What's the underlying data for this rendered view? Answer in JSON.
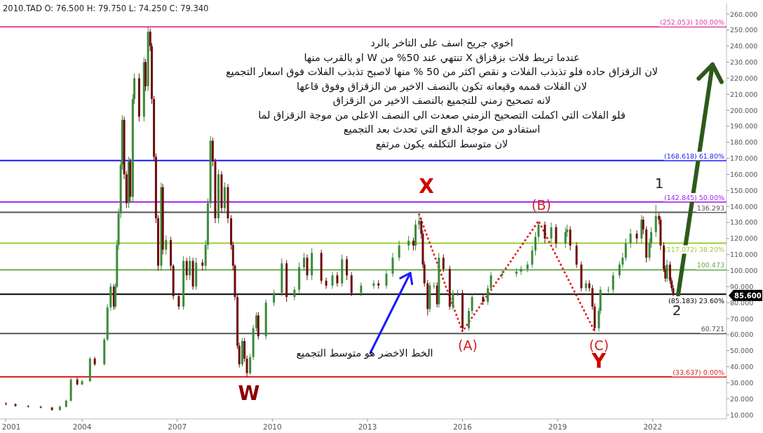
{
  "chart_data": {
    "type": "candlestick",
    "title": "2010.TAD  O: 76.500 H: 79.750 L: 74.250 C: 79.340",
    "colors": [
      "#6e0b0b",
      "#6e0b0b",
      "#6e0b0b",
      "#6e0b0b",
      "#6e0b0b",
      "#3b8a3b",
      "#3b8a3b",
      "#3b8a3b",
      "#6e0b0b",
      "#3b8a3b",
      "#3b8a3b",
      "#6e0b0b",
      "#3b8a3b",
      "#3b8a3b",
      "#3b8a3b",
      "#6e0b0b",
      "#3b8a3b",
      "#3b8a3b",
      "#3b8a3b",
      "#3b8a3b",
      "#3b8a3b",
      "#6e0b0b",
      "#6e0b0b",
      "#3b8a3b",
      "#6e0b0b",
      "#3b8a3b",
      "#3b8a3b",
      "#6e0b0b",
      "#3b8a3b",
      "#6e0b0b",
      "#3b8a3b",
      "#6e0b0b",
      "#6e0b0b",
      "#6e0b0b",
      "#6e0b0b",
      "#6e0b0b",
      "#3b8a3b",
      "#6e0b0b",
      "#3b8a3b",
      "#6e0b0b",
      "#6e0b0b",
      "#6e0b0b",
      "#3b8a3b",
      "#6e0b0b",
      "#3b8a3b",
      "#6e0b0b",
      "#3b8a3b",
      "#6e0b0b",
      "#3b8a3b",
      "#3b8a3b",
      "#3b8a3b",
      "#6e0b0b",
      "#6e0b0b",
      "#3b8a3b",
      "#6e0b0b",
      "#3b8a3b",
      "#6e0b0b",
      "#6e0b0b",
      "#6e0b0b",
      "#6e0b0b",
      "#6e0b0b",
      "#6e0b0b",
      "#3b8a3b",
      "#6e0b0b",
      "#6e0b0b",
      "#3b8a3b",
      "#3b8a3b",
      "#3b8a3b",
      "#6e0b0b",
      "#3b8a3b",
      "#3b8a3b",
      "#3b8a3b",
      "#6e0b0b",
      "#3b8a3b",
      "#3b8a3b",
      "#3b8a3b",
      "#6e0b0b",
      "#3b8a3b",
      "#6e0b0b",
      "#6e0b0b",
      "#3b8a3b",
      "#6e0b0b",
      "#3b8a3b",
      "#6e0b0b",
      "#6e0b0b",
      "#3b8a3b",
      "#3b8a3b",
      "#6e0b0b",
      "#3b8a3b",
      "#3b8a3b",
      "#3b8a3b",
      "#3b8a3b",
      "#6e0b0b",
      "#3b8a3b",
      "#3b8a3b",
      "#6e0b0b",
      "#6e0b0b",
      "#6e0b0b",
      "#6e0b0b",
      "#3b8a3b",
      "#3b8a3b",
      "#6e0b0b",
      "#3b8a3b",
      "#6e0b0b",
      "#6e0b0b",
      "#3b8a3b",
      "#3b8a3b",
      "#6e0b0b",
      "#3b8a3b",
      "#3b8a3b",
      "#6e0b0b",
      "#3b8a3b",
      "#3b8a3b",
      "#3b8a3b",
      "#3b8a3b",
      "#3b8a3b",
      "#3b8a3b",
      "#3b8a3b",
      "#3b8a3b",
      "#3b8a3b",
      "#6e0b0b",
      "#3b8a3b",
      "#6e0b0b",
      "#3b8a3b",
      "#3b8a3b",
      "#6e0b0b",
      "#6e0b0b",
      "#6e0b0b",
      "#3b8a3b",
      "#6e0b0b",
      "#6e0b0b",
      "#6e0b0b",
      "#3b8a3b",
      "#3b8a3b",
      "#3b8a3b",
      "#3b8a3b",
      "#3b8a3b",
      "#3b8a3b",
      "#3b8a3b",
      "#3b8a3b",
      "#6e0b0b",
      "#3b8a3b",
      "#6e0b0b",
      "#6e0b0b",
      "#3b8a3b",
      "#3b8a3b",
      "#3b8a3b",
      "#6e0b0b",
      "#6e0b0b",
      "#6e0b0b",
      "#6e0b0b",
      "#3b8a3b",
      "#6e0b0b",
      "#6e0b0b",
      "#6e0b0b"
    ],
    "x": [
      "2001-08-07",
      "2001-11-24",
      "2002-04-20",
      "2002-09-12",
      "2003-01-19",
      "2003-04-20",
      "2003-07-01",
      "2003-08-25",
      "2003-11-06",
      "2004-01-01",
      "2004-04-01",
      "2004-05-26",
      "2004-09-13",
      "2004-10-19",
      "2004-11-25",
      "2005-01-01",
      "2005-01-19",
      "2005-02-06",
      "2005-02-24",
      "2005-03-21",
      "2005-04-08",
      "2005-04-30",
      "2005-05-26",
      "2005-06-21",
      "2005-07-09",
      "2005-08-07",
      "2005-08-25",
      "2005-10-19",
      "2005-12-14",
      "2006-01-01",
      "2006-01-30",
      "2006-02-24",
      "2006-03-14",
      "2006-04-08",
      "2006-05-01",
      "2006-05-26",
      "2006-07-01",
      "2006-07-19",
      "2006-08-25",
      "2006-10-19",
      "2006-11-17",
      "2007-01-19",
      "2007-03-14",
      "2007-04-20",
      "2007-05-26",
      "2007-07-01",
      "2007-08-07",
      "2007-10-19",
      "2007-11-24",
      "2007-12-20",
      "2008-01-19",
      "2008-02-14",
      "2008-03-14",
      "2008-04-20",
      "2008-05-26",
      "2008-07-01",
      "2008-08-07",
      "2008-09-13",
      "2008-10-05",
      "2008-10-27",
      "2008-11-25",
      "2008-12-16",
      "2009-01-19",
      "2009-02-14",
      "2009-03-14",
      "2009-04-20",
      "2009-05-26",
      "2009-07-01",
      "2009-07-23",
      "2009-10-19",
      "2010-01-19",
      "2010-04-20",
      "2010-06-14",
      "2010-09-13",
      "2010-11-06",
      "2011-01-01",
      "2011-02-06",
      "2011-04-01",
      "2011-07-19",
      "2011-09-13",
      "2011-11-24",
      "2012-01-19",
      "2012-03-14",
      "2012-05-08",
      "2012-07-01",
      "2012-10-19",
      "2013-03-14",
      "2013-05-08",
      "2013-08-07",
      "2013-10-19",
      "2014-01-01",
      "2014-04-20",
      "2014-06-14",
      "2014-07-09",
      "2014-08-19",
      "2014-09-13",
      "2014-10-01",
      "2014-10-19",
      "2014-11-25",
      "2014-12-20",
      "2015-02-06",
      "2015-03-14",
      "2015-04-04",
      "2015-05-26",
      "2015-08-07",
      "2015-09-13",
      "2015-11-06",
      "2016-01-01",
      "2016-03-14",
      "2016-04-20",
      "2016-08-25",
      "2016-10-19",
      "2016-11-24",
      "2017-04-01",
      "2017-09-13",
      "2017-11-06",
      "2018-01-19",
      "2018-03-14",
      "2018-04-20",
      "2018-05-26",
      "2018-08-07",
      "2018-10-19",
      "2018-12-14",
      "2019-04-01",
      "2019-04-20",
      "2019-05-26",
      "2019-08-07",
      "2019-10-01",
      "2019-11-24",
      "2020-01-01",
      "2020-02-06",
      "2020-03-03",
      "2020-04-20",
      "2020-05-08",
      "2020-08-07",
      "2020-10-01",
      "2020-12-14",
      "2021-01-19",
      "2021-02-24",
      "2021-04-20",
      "2021-07-01",
      "2021-08-25",
      "2021-09-13",
      "2021-10-19",
      "2021-11-24",
      "2021-12-14",
      "2022-02-06",
      "2022-03-14",
      "2022-04-01",
      "2022-05-08",
      "2022-05-26",
      "2022-06-14",
      "2022-07-19",
      "2022-08-07",
      "2022-08-25"
    ],
    "ohlc": [
      [
        17,
        17.8,
        16,
        16.6
      ],
      [
        16.6,
        17.2,
        15,
        15.5
      ],
      [
        15.5,
        16,
        14.5,
        15
      ],
      [
        15,
        15.6,
        14,
        14.5
      ],
      [
        14.5,
        15,
        12.5,
        13
      ],
      [
        13,
        15.8,
        12.6,
        15
      ],
      [
        15,
        19.5,
        14.6,
        18.8
      ],
      [
        18.8,
        33,
        18.2,
        32
      ],
      [
        32,
        33.5,
        28.2,
        29
      ],
      [
        29,
        31.8,
        28.5,
        31
      ],
      [
        31,
        46,
        30.5,
        45
      ],
      [
        45,
        46.2,
        40.5,
        41.5
      ],
      [
        41.5,
        58,
        40.8,
        57
      ],
      [
        57,
        79,
        56,
        77
      ],
      [
        77,
        92,
        75,
        90
      ],
      [
        90,
        91.5,
        75.5,
        77.5
      ],
      [
        77.5,
        92,
        76,
        90
      ],
      [
        90,
        119,
        89,
        116
      ],
      [
        116,
        138.6,
        113,
        135.6
      ],
      [
        135.6,
        169,
        132.6,
        166
      ],
      [
        166,
        197,
        163,
        194
      ],
      [
        194,
        196,
        157,
        160
      ],
      [
        160,
        162,
        139,
        142
      ],
      [
        142,
        171,
        139,
        168
      ],
      [
        168,
        170,
        143,
        146
      ],
      [
        146,
        210,
        143,
        207
      ],
      [
        207,
        223,
        204,
        220
      ],
      [
        220,
        223,
        193,
        196
      ],
      [
        196,
        233,
        193,
        230
      ],
      [
        230,
        232,
        212,
        215
      ],
      [
        215,
        252.053,
        212,
        249
      ],
      [
        249,
        251,
        237,
        240
      ],
      [
        240,
        242,
        204,
        207
      ],
      [
        207,
        209,
        168,
        171
      ],
      [
        171,
        173,
        129.6,
        132.6
      ],
      [
        132.6,
        134.6,
        100,
        103
      ],
      [
        103,
        155,
        100,
        152
      ],
      [
        152,
        154,
        110,
        113
      ],
      [
        113,
        122,
        110,
        119
      ],
      [
        119,
        121,
        100,
        103
      ],
      [
        103,
        104,
        82,
        84
      ],
      [
        84,
        86,
        75.5,
        77.5
      ],
      [
        77.5,
        109,
        75.5,
        106
      ],
      [
        106,
        108,
        94,
        97
      ],
      [
        97,
        109,
        94,
        106
      ],
      [
        106,
        108,
        88,
        90
      ],
      [
        90,
        108,
        88,
        105
      ],
      [
        105,
        107,
        100,
        103
      ],
      [
        103,
        119,
        100,
        116
      ],
      [
        116,
        145,
        113,
        142
      ],
      [
        142,
        184,
        139,
        181
      ],
      [
        181,
        183,
        165,
        168
      ],
      [
        168,
        170,
        129.6,
        132.6
      ],
      [
        132.6,
        163,
        129.6,
        160
      ],
      [
        160,
        162,
        136,
        139
      ],
      [
        139,
        155,
        136,
        152
      ],
      [
        152,
        154,
        129.6,
        132.6
      ],
      [
        132.6,
        134.6,
        113,
        116
      ],
      [
        116,
        118,
        100,
        103
      ],
      [
        103,
        104,
        81.5,
        83.5
      ],
      [
        83.5,
        85,
        51,
        53
      ],
      [
        53,
        55,
        39.5,
        41.5
      ],
      [
        41.5,
        58,
        40,
        56
      ],
      [
        56,
        58,
        43,
        45
      ],
      [
        45,
        47,
        33.637,
        36
      ],
      [
        36,
        48,
        35,
        46
      ],
      [
        46,
        66,
        44,
        64
      ],
      [
        64,
        74,
        62,
        72
      ],
      [
        72,
        74,
        57,
        59
      ],
      [
        59,
        82,
        57,
        80
      ],
      [
        80,
        88,
        78,
        86
      ],
      [
        86,
        107.5,
        84,
        104.5
      ],
      [
        104.5,
        106.5,
        80.5,
        83.5
      ],
      [
        83.5,
        90,
        81.5,
        88
      ],
      [
        88,
        105,
        86,
        102
      ],
      [
        102,
        111,
        100,
        108
      ],
      [
        108,
        110,
        94,
        97
      ],
      [
        97,
        114,
        94,
        111
      ],
      [
        111,
        113,
        91.6,
        93.6
      ],
      [
        93.6,
        95.6,
        88.6,
        90.6
      ],
      [
        90.6,
        99,
        88.6,
        97
      ],
      [
        97,
        99,
        90,
        92
      ],
      [
        92,
        110,
        90,
        107
      ],
      [
        107,
        109,
        94,
        97
      ],
      [
        97,
        99,
        84,
        86
      ],
      [
        86,
        92.6,
        84,
        90.6
      ],
      [
        90.6,
        94,
        88.6,
        92
      ],
      [
        92,
        94,
        88.6,
        90.6
      ],
      [
        90.6,
        100,
        88.6,
        98
      ],
      [
        98,
        111,
        96,
        108
      ],
      [
        108,
        118.6,
        106,
        115.6
      ],
      [
        115.6,
        121.6,
        112.6,
        118.6
      ],
      [
        118.6,
        120.6,
        112.6,
        115.6
      ],
      [
        115.6,
        131.6,
        112.6,
        128.6
      ],
      [
        128.6,
        135,
        125.6,
        131
      ],
      [
        131,
        133,
        120,
        123
      ],
      [
        123,
        125,
        101.7,
        103.7
      ],
      [
        103.7,
        105.7,
        90,
        92
      ],
      [
        92,
        94,
        72,
        76
      ],
      [
        76,
        92.6,
        74,
        90.6
      ],
      [
        90.6,
        92.6,
        88.6,
        90.6
      ],
      [
        90.6,
        92.6,
        77,
        79
      ],
      [
        79,
        111,
        77,
        108
      ],
      [
        108,
        110,
        99,
        101
      ],
      [
        101,
        103,
        75.5,
        77.5
      ],
      [
        77.5,
        88,
        75.5,
        86
      ],
      [
        86,
        88,
        84,
        86
      ],
      [
        86,
        88,
        62,
        64
      ],
      [
        64,
        76.8,
        62.5,
        74.8
      ],
      [
        74.8,
        85.5,
        72.8,
        83.5
      ],
      [
        83.5,
        85.5,
        78.5,
        80.5
      ],
      [
        80.5,
        91,
        78.5,
        89
      ],
      [
        89,
        99,
        87,
        97
      ],
      [
        97,
        100,
        95,
        98
      ],
      [
        98,
        101.3,
        96,
        99.3
      ],
      [
        99.3,
        103,
        97.3,
        101
      ],
      [
        101,
        105.7,
        99,
        103.7
      ],
      [
        103.7,
        115.5,
        101.7,
        112.5
      ],
      [
        112.5,
        124,
        109.5,
        121
      ],
      [
        121,
        131,
        118,
        128.6
      ],
      [
        128.6,
        130.6,
        117,
        120
      ],
      [
        120,
        130,
        117,
        127
      ],
      [
        127,
        129,
        114,
        117
      ],
      [
        117,
        127,
        114,
        124
      ],
      [
        124,
        128.6,
        121,
        125.6
      ],
      [
        125.6,
        127.6,
        112.6,
        115.6
      ],
      [
        115.6,
        117.6,
        101.7,
        103.7
      ],
      [
        103.7,
        105.7,
        87,
        89
      ],
      [
        89,
        94,
        87,
        92
      ],
      [
        92,
        94,
        87,
        89
      ],
      [
        89,
        91,
        75.5,
        77.5
      ],
      [
        77.5,
        79.5,
        62,
        64
      ],
      [
        64,
        76.8,
        62,
        74.8
      ],
      [
        74.8,
        90,
        72.8,
        88
      ],
      [
        88,
        90,
        86,
        88
      ],
      [
        88,
        99,
        86,
        97
      ],
      [
        97,
        105.7,
        95,
        103.7
      ],
      [
        103.7,
        111,
        101.7,
        108
      ],
      [
        108,
        120,
        106,
        117
      ],
      [
        117,
        126,
        114,
        123
      ],
      [
        123,
        125,
        117,
        120
      ],
      [
        120,
        134.7,
        117,
        131.7
      ],
      [
        131.7,
        133.7,
        122.6,
        125.6
      ],
      [
        125.6,
        127.6,
        105,
        108
      ],
      [
        108,
        120,
        106,
        117
      ],
      [
        117,
        127,
        114,
        124
      ],
      [
        124,
        141,
        121,
        134
      ],
      [
        134,
        136,
        128.7,
        131.7
      ],
      [
        131.7,
        133.7,
        112.6,
        115.6
      ],
      [
        115.6,
        117.6,
        99,
        101
      ],
      [
        101,
        103,
        93,
        95
      ],
      [
        95,
        106.7,
        93,
        103.7
      ],
      [
        103.7,
        105.7,
        91.6,
        93.6
      ],
      [
        93.6,
        95.6,
        87,
        89
      ],
      [
        89,
        91,
        84,
        85.6
      ]
    ],
    "series": [
      {
        "type": "line",
        "color": "#e02020",
        "line_style": "dotted",
        "x": [
          "2014-08-19",
          "2016-01-01",
          "2018-05-26",
          "2020-03-03"
        ],
        "values": [
          135,
          62,
          131,
          62
        ]
      }
    ],
    "ref_lines": [
      {
        "axis": "y",
        "value": 252.053,
        "label": "(252.053) 100.00%",
        "color": "#e0409a"
      },
      {
        "axis": "y",
        "value": 168.618,
        "label": "(168.618) 61.80%",
        "color": "#1a1aff"
      },
      {
        "axis": "y",
        "value": 142.845,
        "label": "(142.845) 50.00%",
        "color": "#a020f0"
      },
      {
        "axis": "y",
        "value": 136.293,
        "label": "136.293",
        "color": "#555555"
      },
      {
        "axis": "y",
        "value": 117.072,
        "label": "(117.072) 38.20%",
        "color": "#9acd32"
      },
      {
        "axis": "y",
        "value": 100.473,
        "label": "100.473",
        "color": "#6aa84f"
      },
      {
        "axis": "y",
        "value": 85.183,
        "label": "(85.183) 23.60%",
        "color": "#000000"
      },
      {
        "axis": "y",
        "value": 60.721,
        "label": "60.721",
        "color": "#555555"
      },
      {
        "axis": "y",
        "value": 33.637,
        "label": "(33.637) 0.00%",
        "color": "#e02020"
      }
    ],
    "annotations": [
      "اخوي جريح اسف على التاخر بالرد",
      "عندما تربط  فلات  بزقزاق  X  تنتهي عند 50% من W او بالقرب منها",
      "لان الزقزاق حاده فلو تذبذب الفلات و نقص اكثر من 50 % منها لاصبح تذبذب الفلات فوق اسعار التجميع",
      "لان الفلات قممه وقيعانه تكون بالنصف الاخير من  الزقزاق وفوق قاعها",
      "لانه تصحيح زمني للتجميع بالنصف الاخير من الزقزاق",
      "فلو الفلات التي اكملت التصحيح الزمني صعدت الى النصف الاعلى من موجة الزقزاق  لما",
      "استفادو من موجة الدفع التي تحدث بعد التجميع",
      "لان متوسط التكلفه يكون مرتفع",
      "الخط الاخضر  هو متوسط التجميع",
      "W",
      "X",
      "(A)",
      "(B)",
      "(C)",
      "Y",
      "1",
      "2",
      "85.600"
    ],
    "xlim": [
      "2001-05-30",
      "2024-04-30"
    ],
    "ylim": [
      7.4,
      266.6
    ],
    "xticks": [
      {
        "value": "2001-08",
        "label": "2001"
      },
      {
        "value": "2004",
        "label": "2004"
      },
      {
        "value": "2007",
        "label": "2007"
      },
      {
        "value": "2010",
        "label": "2010"
      },
      {
        "value": "2013",
        "label": "2013"
      },
      {
        "value": "2016",
        "label": "2016"
      },
      {
        "value": "2019",
        "label": "2019"
      },
      {
        "value": "2022",
        "label": "2022"
      }
    ],
    "yticks": [
      {
        "value": 10,
        "label": "10.000"
      },
      {
        "value": 20,
        "label": "20.000"
      },
      {
        "value": 30,
        "label": "30.000"
      },
      {
        "value": 40,
        "label": "40.000"
      },
      {
        "value": 50,
        "label": "50.000"
      },
      {
        "value": 60,
        "label": "60.000"
      },
      {
        "value": 70,
        "label": "70.000"
      },
      {
        "value": 80,
        "label": "80.000"
      },
      {
        "value": 90,
        "label": "90.000"
      },
      {
        "value": 100,
        "label": "100.000"
      },
      {
        "value": 110,
        "label": "110.000"
      },
      {
        "value": 120,
        "label": "120.000"
      },
      {
        "value": 130,
        "label": "130.000"
      },
      {
        "value": 140,
        "label": "140.000"
      },
      {
        "value": 150,
        "label": "150.000"
      },
      {
        "value": 160,
        "label": "160.000"
      },
      {
        "value": 170,
        "label": "170.000"
      },
      {
        "value": 180,
        "label": "180.000"
      },
      {
        "value": 190,
        "label": "190.000"
      },
      {
        "value": 200,
        "label": "200.000"
      },
      {
        "value": 210,
        "label": "210.000"
      },
      {
        "value": 220,
        "label": "220.000"
      },
      {
        "value": 230,
        "label": "230.000"
      },
      {
        "value": 240,
        "label": "240.000"
      },
      {
        "value": 250,
        "label": "250.000"
      },
      {
        "value": 260,
        "label": "260.000"
      }
    ]
  }
}
